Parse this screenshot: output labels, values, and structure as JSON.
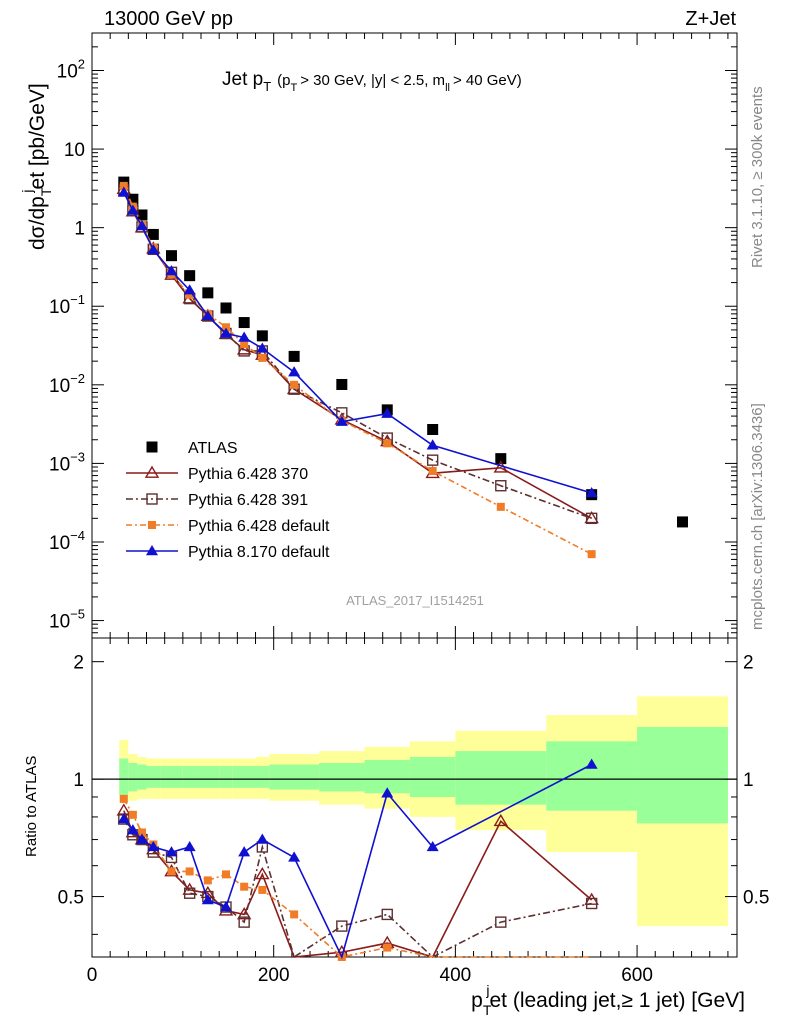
{
  "header": {
    "left": "13000 GeV pp",
    "right": "Z+Jet"
  },
  "side_labels": {
    "rivet": "Rivet 3.1.10, ≥ 300k events",
    "mcplots": "mcplots.cern.ch [arXiv:1306.3436]"
  },
  "analysis_id": "ATLAS_2017_I1514251",
  "plot_title": {
    "main": "Jet p",
    "sub": "T",
    "cuts": "(p",
    "cuts_sub": "T",
    "cuts_rest": "> 30 GeV, |y| < 2.5, m",
    "m_sub": "ll",
    "cuts_end": "> 40 GeV)"
  },
  "y_label_main": {
    "a": "dσ/dp",
    "sub": "T",
    "sup": "j",
    "b": "et [pb/GeV]"
  },
  "y_label_ratio": "Ratio to ATLAS",
  "x_label": {
    "a": "p",
    "sub": "T",
    "sup": "j",
    "b": "et (leading jet,≥ 1 jet) [GeV]"
  },
  "main_y_ticks": [
    "10⁵",
    "10⁴",
    "10³",
    "10²",
    "10¹",
    "1",
    "10",
    "10²"
  ],
  "main_y_ticks_list": [
    {
      "base": "10",
      "exp": "−5",
      "v": -5
    },
    {
      "base": "10",
      "exp": "−4",
      "v": -4
    },
    {
      "base": "10",
      "exp": "−3",
      "v": -3
    },
    {
      "base": "10",
      "exp": "−2",
      "v": -2
    },
    {
      "base": "10",
      "exp": "−1",
      "v": -1
    },
    {
      "base": "1",
      "exp": "",
      "v": 0
    },
    {
      "base": "10",
      "exp": "",
      "v": 1
    },
    {
      "base": "10",
      "exp": "2",
      "v": 2
    }
  ],
  "ratio_y_ticks": [
    "0.5",
    "1",
    "2"
  ],
  "x_ticks": [
    "0",
    "200",
    "400",
    "600"
  ],
  "legend": [
    "ATLAS",
    "Pythia 6.428 370",
    "Pythia 6.428 391",
    "Pythia 6.428 default",
    "Pythia 8.170 default"
  ],
  "chart_data": {
    "type": "scatter",
    "title": "Jet pT (pT > 30 GeV, |y| < 2.5, mll > 40 GeV)",
    "xlabel": "pTjet (leading jet,≥ 1 jet) [GeV]",
    "ylabel": "dσ/dpTjet [pb/GeV]",
    "xlim": [
      0,
      710
    ],
    "ylim": [
      6e-06,
      300
    ],
    "log_y": true,
    "ratio_ylim": [
      0.35,
      2.3
    ],
    "x": [
      35,
      45,
      55,
      67.5,
      87.5,
      107.5,
      127.5,
      147.5,
      167.5,
      187.5,
      222.5,
      275,
      325,
      375,
      450,
      550,
      650
    ],
    "series": [
      {
        "name": "ATLAS",
        "color": "#000000",
        "marker": "square",
        "values": [
          3.8,
          2.3,
          1.45,
          0.82,
          0.44,
          0.245,
          0.148,
          0.095,
          0.062,
          0.042,
          0.023,
          0.0101,
          0.0048,
          0.0027,
          0.00115,
          0.0004,
          0.00018
        ]
      },
      {
        "name": "Pythia 6.428 370",
        "color": "#8b1a1a",
        "marker": "open-triangle",
        "values": [
          3.1,
          1.6,
          1.0,
          0.54,
          0.25,
          0.125,
          0.075,
          0.044,
          0.028,
          0.024,
          0.0088,
          0.0036,
          0.0019,
          0.00075,
          0.00088,
          0.0002,
          null
        ],
        "ratio": [
          0.83,
          0.73,
          0.7,
          0.66,
          0.58,
          0.52,
          0.51,
          0.46,
          0.45,
          0.57,
          0.28,
          0.36,
          0.38,
          0.28,
          0.78,
          0.49,
          null
        ]
      },
      {
        "name": "Pythia 6.428 391",
        "color": "#5c3030",
        "marker": "open-square",
        "values": [
          3.0,
          1.65,
          1.02,
          0.53,
          0.27,
          0.125,
          0.075,
          0.045,
          0.027,
          0.027,
          0.0088,
          0.0044,
          0.0021,
          0.0011,
          0.00052,
          0.0002,
          null
        ],
        "ratio": [
          0.79,
          0.72,
          0.7,
          0.65,
          0.63,
          0.51,
          0.5,
          0.47,
          0.43,
          0.67,
          0.32,
          0.42,
          0.45,
          0.33,
          0.43,
          0.48,
          null
        ]
      },
      {
        "name": "Pythia 6.428 default",
        "color": "#f07c28",
        "marker": "filled-square",
        "values": [
          3.4,
          1.85,
          1.08,
          0.56,
          0.255,
          0.14,
          0.08,
          0.054,
          0.033,
          0.022,
          0.01,
          0.0035,
          0.0018,
          0.0008,
          0.00028,
          7e-05,
          null
        ],
        "ratio": [
          0.89,
          0.81,
          0.73,
          0.68,
          0.58,
          0.58,
          0.55,
          0.57,
          0.53,
          0.52,
          0.45,
          0.35,
          0.37,
          0.3,
          0.25,
          0.18,
          null
        ]
      },
      {
        "name": "Pythia 8.170 default",
        "color": "#1010d0",
        "marker": "filled-triangle",
        "values": [
          2.8,
          1.65,
          1.05,
          0.52,
          0.28,
          0.16,
          0.075,
          0.045,
          0.04,
          0.029,
          0.0145,
          0.0034,
          0.0043,
          0.0017,
          null,
          0.00042,
          null
        ],
        "ratio": [
          0.79,
          0.74,
          0.7,
          0.67,
          0.65,
          0.67,
          0.49,
          0.47,
          0.65,
          0.7,
          0.63,
          0.33,
          0.92,
          0.67,
          null,
          1.09,
          null
        ]
      }
    ],
    "uncertainty_bands": {
      "edges": [
        30,
        40,
        50,
        60,
        75,
        100,
        115,
        140,
        155,
        180,
        195,
        250,
        300,
        350,
        400,
        500,
        600,
        700
      ],
      "green_low": [
        0.91,
        0.93,
        0.94,
        0.95,
        0.95,
        0.95,
        0.95,
        0.95,
        0.95,
        0.95,
        0.94,
        0.93,
        0.92,
        0.9,
        0.86,
        0.83,
        0.77
      ],
      "green_high": [
        1.13,
        1.1,
        1.09,
        1.08,
        1.08,
        1.08,
        1.08,
        1.08,
        1.08,
        1.08,
        1.09,
        1.1,
        1.12,
        1.14,
        1.18,
        1.25,
        1.36
      ],
      "yellow_low": [
        0.87,
        0.88,
        0.89,
        0.89,
        0.89,
        0.89,
        0.89,
        0.89,
        0.89,
        0.89,
        0.88,
        0.86,
        0.84,
        0.8,
        0.74,
        0.65,
        0.42
      ],
      "yellow_high": [
        1.26,
        1.16,
        1.14,
        1.13,
        1.13,
        1.13,
        1.13,
        1.13,
        1.13,
        1.14,
        1.16,
        1.18,
        1.21,
        1.25,
        1.33,
        1.46,
        1.63
      ]
    },
    "legend_position": "lower-left"
  }
}
